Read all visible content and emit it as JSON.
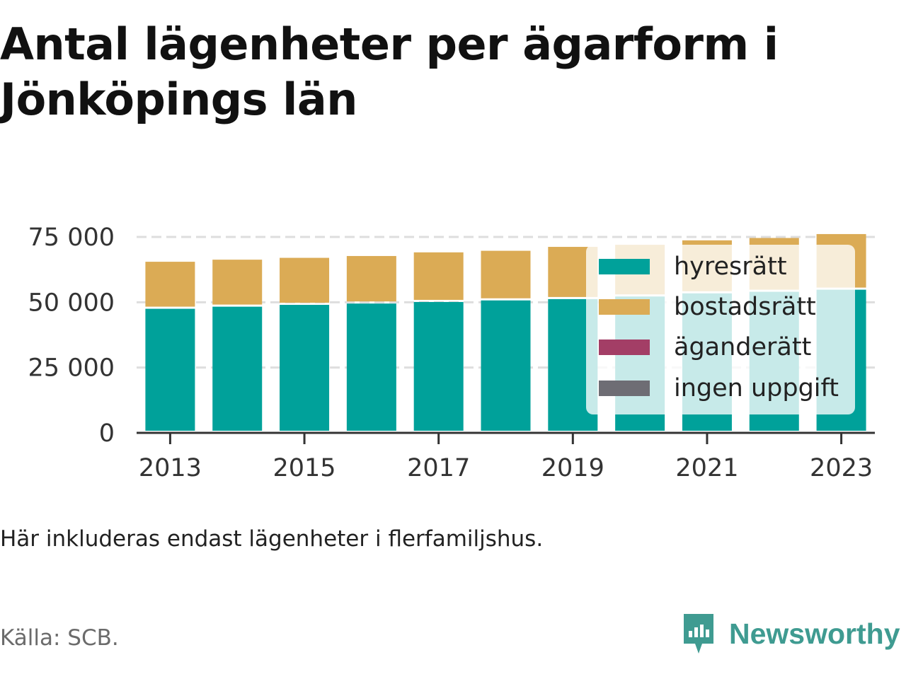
{
  "title": "Antal lägenheter per ägarform i Jönköpings län",
  "caption": "Här inkluderas endast lägenheter i flerfamiljshus.",
  "source": "Källa: SCB.",
  "brand": {
    "name": "Newsworthy",
    "icon": "newsworthy-logo-icon",
    "color": "#3f9b91"
  },
  "chart_data": {
    "type": "bar",
    "stacked": true,
    "title": "Antal lägenheter per ägarform i Jönköpings län",
    "categories": [
      "2013",
      "2014",
      "2015",
      "2016",
      "2017",
      "2018",
      "2019",
      "2020",
      "2021",
      "2022",
      "2023"
    ],
    "x_tick_labels": [
      "2013",
      "2015",
      "2017",
      "2019",
      "2021",
      "2023"
    ],
    "y_tick_labels": [
      "0",
      "25 000",
      "50 000",
      "75 000"
    ],
    "ylim": [
      0,
      75000
    ],
    "grid": true,
    "legend_position": "right",
    "series": [
      {
        "name": "hyresrätt",
        "color": "#00a19a",
        "values": [
          47500,
          48300,
          49000,
          49500,
          50100,
          50700,
          51200,
          52200,
          53400,
          54000,
          54800
        ]
      },
      {
        "name": "bostadsrätt",
        "color": "#dbab55",
        "values": [
          18000,
          18000,
          18000,
          18200,
          19000,
          19000,
          20000,
          19800,
          20300,
          20600,
          21300
        ]
      },
      {
        "name": "äganderätt",
        "color": "#a33e66",
        "values": [
          0,
          0,
          0,
          0,
          0,
          0,
          0,
          0,
          0,
          0,
          0
        ]
      },
      {
        "name": "ingen uppgift",
        "color": "#6e6d74",
        "values": [
          0,
          0,
          0,
          0,
          0,
          0,
          0,
          0,
          0,
          0,
          0
        ]
      }
    ]
  }
}
